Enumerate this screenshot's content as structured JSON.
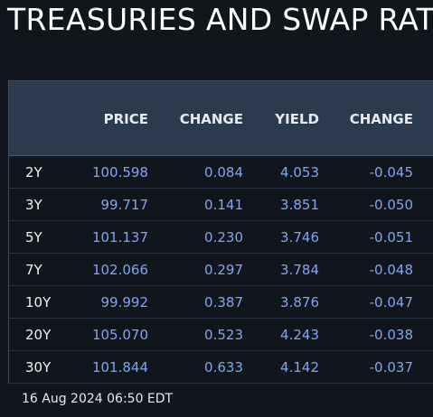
{
  "title": "TREASURIES AND SWAP RATES",
  "headers": {
    "tenor": "",
    "price": "PRICE",
    "price_change": "CHANGE",
    "yield": "YIELD",
    "yield_change": "CHANGE"
  },
  "rows": [
    {
      "tenor": "2Y",
      "price": "100.598",
      "price_change": "0.084",
      "yield": "4.053",
      "yield_change": "-0.045"
    },
    {
      "tenor": "3Y",
      "price": "99.717",
      "price_change": "0.141",
      "yield": "3.851",
      "yield_change": "-0.050"
    },
    {
      "tenor": "5Y",
      "price": "101.137",
      "price_change": "0.230",
      "yield": "3.746",
      "yield_change": "-0.051"
    },
    {
      "tenor": "7Y",
      "price": "102.066",
      "price_change": "0.297",
      "yield": "3.784",
      "yield_change": "-0.048"
    },
    {
      "tenor": "10Y",
      "price": "99.992",
      "price_change": "0.387",
      "yield": "3.876",
      "yield_change": "-0.047"
    },
    {
      "tenor": "20Y",
      "price": "105.070",
      "price_change": "0.523",
      "yield": "4.243",
      "yield_change": "-0.038"
    },
    {
      "tenor": "30Y",
      "price": "101.844",
      "price_change": "0.633",
      "yield": "4.142",
      "yield_change": "-0.037"
    }
  ],
  "timestamp": "16 Aug 2024 06:50 EDT",
  "colors": {
    "background": "#11151c",
    "header_background": "#2b3a4c",
    "value_text": "#7ea6f5",
    "label_text": "#eef1f5"
  }
}
